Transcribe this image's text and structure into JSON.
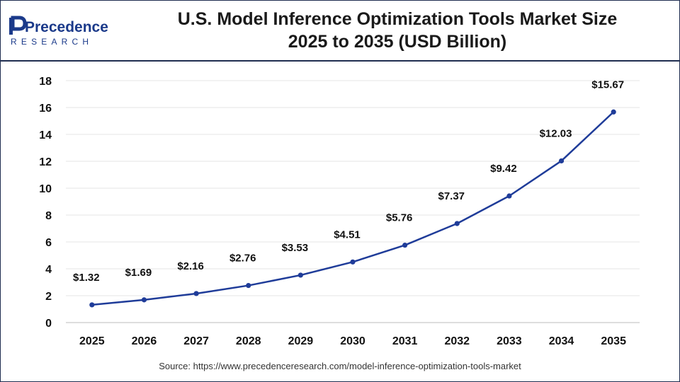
{
  "brand": {
    "name_line1": "Precedence",
    "name_line2": "RESEARCH",
    "logo_color": "#1b3a8a"
  },
  "title": {
    "line1": "U.S. Model Inference Optimization Tools Market Size",
    "line2": "2025 to 2035 (USD Billion)"
  },
  "source": "Source: https://www.precedenceresearch.com/model-inference-optimization-tools-market",
  "colors": {
    "line": "#1f3c99",
    "marker": "#1f3c99",
    "grid": "#e6e6e6",
    "frame": "#1f2d50"
  },
  "chart_data": {
    "type": "line",
    "categories": [
      "2025",
      "2026",
      "2027",
      "2028",
      "2029",
      "2030",
      "2031",
      "2032",
      "2033",
      "2034",
      "2035"
    ],
    "series": [
      {
        "values": [
          1.32,
          1.69,
          2.16,
          2.76,
          3.53,
          4.51,
          5.76,
          7.37,
          9.42,
          12.03,
          15.67
        ],
        "labels": [
          "$1.32",
          "$1.69",
          "$2.16",
          "$2.76",
          "$3.53",
          "$4.51",
          "$5.76",
          "$7.37",
          "$9.42",
          "$12.03",
          "$15.67"
        ]
      }
    ],
    "ylim": [
      0,
      18
    ],
    "yticks": [
      "0",
      "2",
      "4",
      "6",
      "8",
      "10",
      "12",
      "14",
      "16",
      "18"
    ],
    "grid": true
  }
}
